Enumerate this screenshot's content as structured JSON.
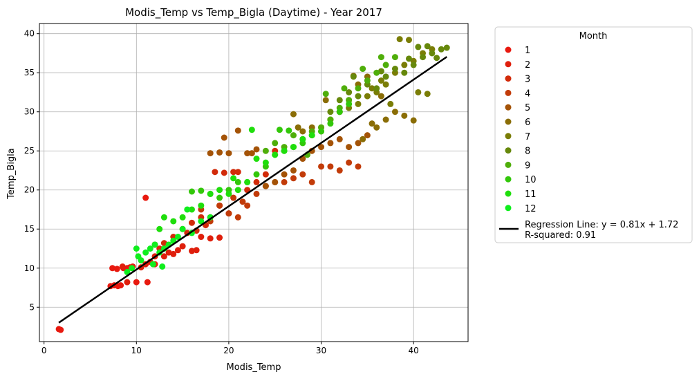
{
  "chart_data": {
    "type": "scatter",
    "title": "Modis_Temp vs Temp_Bigla (Daytime) - Year 2017",
    "xlabel": "Modis_Temp",
    "ylabel": "Temp_Bigla",
    "xlim": [
      -0.5,
      45.9
    ],
    "ylim": [
      0.6,
      41.3
    ],
    "xticks": [
      0,
      10,
      20,
      30,
      40
    ],
    "yticks": [
      5,
      10,
      15,
      20,
      25,
      30,
      35,
      40
    ],
    "grid": true,
    "legend": {
      "title": "Month",
      "placement": "outside-right-top",
      "entries": [
        "1",
        "2",
        "3",
        "4",
        "5",
        "6",
        "7",
        "8",
        "9",
        "10",
        "11",
        "12"
      ]
    },
    "series": [
      {
        "name": "1",
        "color": "#e8190f",
        "x": [
          1.6,
          1.8,
          7.2,
          7.6,
          8.0,
          8.3,
          8.6,
          9.0,
          9.3,
          9.6,
          10.0,
          11.0,
          11.2,
          12.0,
          7.4,
          7.9
        ],
        "y": [
          2.2,
          2.1,
          7.7,
          7.8,
          7.7,
          7.8,
          10.0,
          10.0,
          10.1,
          10.2,
          8.2,
          19.0,
          8.2,
          10.5,
          10.0,
          9.9
        ]
      },
      {
        "name": "2",
        "color": "#df1f0c",
        "x": [
          9.0,
          9.5,
          10.5,
          11.0,
          11.5,
          12.0,
          12.5,
          13.0,
          13.5,
          14.0,
          14.5,
          15.0,
          16.0,
          16.5,
          17.0,
          18.0,
          19.0,
          8.5
        ],
        "y": [
          8.2,
          10.1,
          10.1,
          10.5,
          10.8,
          11.5,
          12.5,
          11.5,
          12.0,
          11.8,
          12.3,
          12.8,
          12.2,
          12.3,
          14.0,
          13.8,
          13.9,
          10.2
        ]
      },
      {
        "name": "3",
        "color": "#d22b0a",
        "x": [
          12.0,
          13.0,
          14.0,
          15.0,
          16.0,
          17.0,
          18.0,
          18.5,
          19.0,
          19.5,
          20.0,
          20.5,
          21.0,
          22.0,
          23.0,
          24.0,
          25.0,
          17.5,
          16.5,
          15.5
        ],
        "y": [
          13.0,
          13.2,
          14.0,
          15.0,
          15.8,
          16.5,
          16.5,
          22.3,
          18.0,
          22.2,
          17.0,
          22.3,
          22.3,
          20.0,
          21.0,
          22.0,
          25.0,
          15.5,
          14.8,
          14.5
        ]
      },
      {
        "name": "4",
        "color": "#c23b09",
        "x": [
          17.0,
          18.0,
          19.0,
          20.0,
          20.5,
          21.0,
          21.5,
          22.0,
          23.0,
          24.0,
          25.0,
          26.0,
          27.0,
          28.0,
          29.0,
          30.0,
          31.0,
          32.0,
          33.0,
          34.0
        ],
        "y": [
          17.5,
          16.0,
          18.0,
          17.0,
          19.0,
          16.5,
          18.5,
          18.0,
          19.5,
          20.5,
          21.0,
          21.0,
          21.5,
          22.0,
          21.0,
          23.0,
          23.0,
          22.5,
          23.5,
          23.0
        ]
      },
      {
        "name": "5",
        "color": "#a45307",
        "x": [
          18.0,
          19.0,
          20.0,
          21.0,
          22.0,
          23.0,
          24.0,
          25.0,
          26.0,
          27.0,
          28.0,
          29.0,
          30.0,
          31.0,
          32.0,
          33.0,
          34.0,
          35.0,
          19.5,
          22.5
        ],
        "y": [
          24.7,
          24.8,
          24.7,
          27.6,
          24.7,
          25.2,
          20.5,
          21.0,
          22.0,
          22.5,
          24.0,
          25.0,
          25.5,
          26.0,
          26.5,
          25.5,
          26.0,
          27.0,
          26.7,
          24.7
        ]
      },
      {
        "name": "6",
        "color": "#8a6d06",
        "x": [
          27.0,
          28.0,
          29.0,
          30.0,
          31.0,
          32.0,
          33.0,
          34.0,
          35.0,
          36.0,
          37.0,
          38.0,
          39.0,
          40.0,
          34.5,
          35.5,
          33.5,
          30.5,
          27.5,
          36.5
        ],
        "y": [
          29.7,
          27.5,
          28.0,
          27.5,
          29.0,
          30.0,
          31.5,
          33.5,
          34.5,
          28.0,
          29.0,
          30.0,
          29.5,
          28.9,
          26.5,
          28.5,
          34.6,
          31.5,
          28.0,
          32.0
        ]
      },
      {
        "name": "7",
        "color": "#7a7d06",
        "x": [
          30.0,
          31.0,
          32.0,
          33.0,
          34.0,
          35.0,
          36.0,
          37.0,
          38.0,
          39.0,
          40.0,
          41.0,
          42.0,
          38.5,
          39.5,
          36.5,
          35.5,
          37.5,
          40.5,
          41.5
        ],
        "y": [
          28.0,
          29.0,
          30.0,
          30.5,
          31.0,
          32.0,
          32.5,
          33.5,
          35.0,
          36.0,
          36.5,
          37.5,
          38.0,
          39.3,
          39.2,
          34.0,
          33.0,
          31.0,
          32.5,
          32.3
        ]
      },
      {
        "name": "8",
        "color": "#66880b",
        "x": [
          31.0,
          32.0,
          33.0,
          34.0,
          35.0,
          36.0,
          37.0,
          38.0,
          39.0,
          40.0,
          41.0,
          42.0,
          43.0,
          43.6,
          39.5,
          40.5,
          36.5,
          33.5,
          41.5,
          42.5
        ],
        "y": [
          30.0,
          31.5,
          32.5,
          32.0,
          33.5,
          33.0,
          34.5,
          35.5,
          35.0,
          36.0,
          37.0,
          37.5,
          38.0,
          38.2,
          36.8,
          38.3,
          35.2,
          34.5,
          38.4,
          36.9
        ]
      },
      {
        "name": "9",
        "color": "#4fae0a",
        "x": [
          24.0,
          25.0,
          26.0,
          27.0,
          28.0,
          29.0,
          30.0,
          31.0,
          32.0,
          33.0,
          34.0,
          35.0,
          36.0,
          37.0,
          38.0,
          30.5,
          32.5,
          34.5,
          36.5,
          28.5
        ],
        "y": [
          25.0,
          26.0,
          25.5,
          27.0,
          26.5,
          27.5,
          28.0,
          29.0,
          30.5,
          31.5,
          33.0,
          34.0,
          35.0,
          36.0,
          37.0,
          32.3,
          33.0,
          35.5,
          37.0,
          24.5
        ]
      },
      {
        "name": "10",
        "color": "#32c70a",
        "x": [
          16.0,
          17.0,
          18.0,
          19.0,
          20.0,
          21.0,
          22.0,
          23.0,
          24.0,
          25.0,
          26.0,
          27.0,
          28.0,
          29.0,
          30.0,
          31.0,
          32.0,
          33.0,
          25.5,
          26.5
        ],
        "y": [
          19.8,
          19.9,
          19.5,
          19.0,
          20.0,
          21.0,
          21.0,
          22.0,
          23.0,
          24.5,
          25.0,
          25.5,
          26.0,
          27.0,
          27.5,
          28.5,
          30.0,
          31.0,
          27.7,
          27.6
        ]
      },
      {
        "name": "11",
        "color": "#1fde0c",
        "x": [
          12.5,
          13.0,
          14.0,
          15.0,
          16.0,
          17.0,
          18.0,
          19.0,
          20.0,
          21.0,
          22.0,
          23.0,
          24.0,
          25.0,
          26.0,
          27.0,
          28.0,
          29.0,
          22.5,
          20.5
        ],
        "y": [
          15.0,
          16.5,
          16.0,
          16.5,
          17.5,
          18.0,
          19.5,
          20.0,
          19.5,
          20.0,
          21.0,
          24.0,
          23.5,
          24.5,
          25.0,
          25.5,
          26.5,
          27.0,
          27.7,
          21.5
        ]
      },
      {
        "name": "12",
        "color": "#0fee1d",
        "x": [
          9.0,
          9.5,
          10.0,
          10.5,
          11.0,
          11.5,
          12.0,
          12.5,
          13.0,
          13.5,
          14.0,
          14.5,
          15.0,
          16.0,
          17.0,
          18.0,
          10.2,
          11.8,
          12.8,
          15.5
        ],
        "y": [
          9.5,
          10.0,
          12.5,
          11.0,
          12.0,
          12.5,
          13.0,
          12.0,
          12.5,
          13.0,
          13.5,
          14.0,
          15.0,
          14.5,
          16.0,
          16.5,
          11.5,
          10.5,
          10.2,
          17.5
        ]
      }
    ],
    "regression": {
      "label": "Regression Line: y = 0.81x + 1.72\nR-squared: 0.91",
      "slope": 0.81,
      "intercept": 1.72,
      "x_range": [
        1.6,
        43.6
      ],
      "color": "#000000"
    }
  }
}
